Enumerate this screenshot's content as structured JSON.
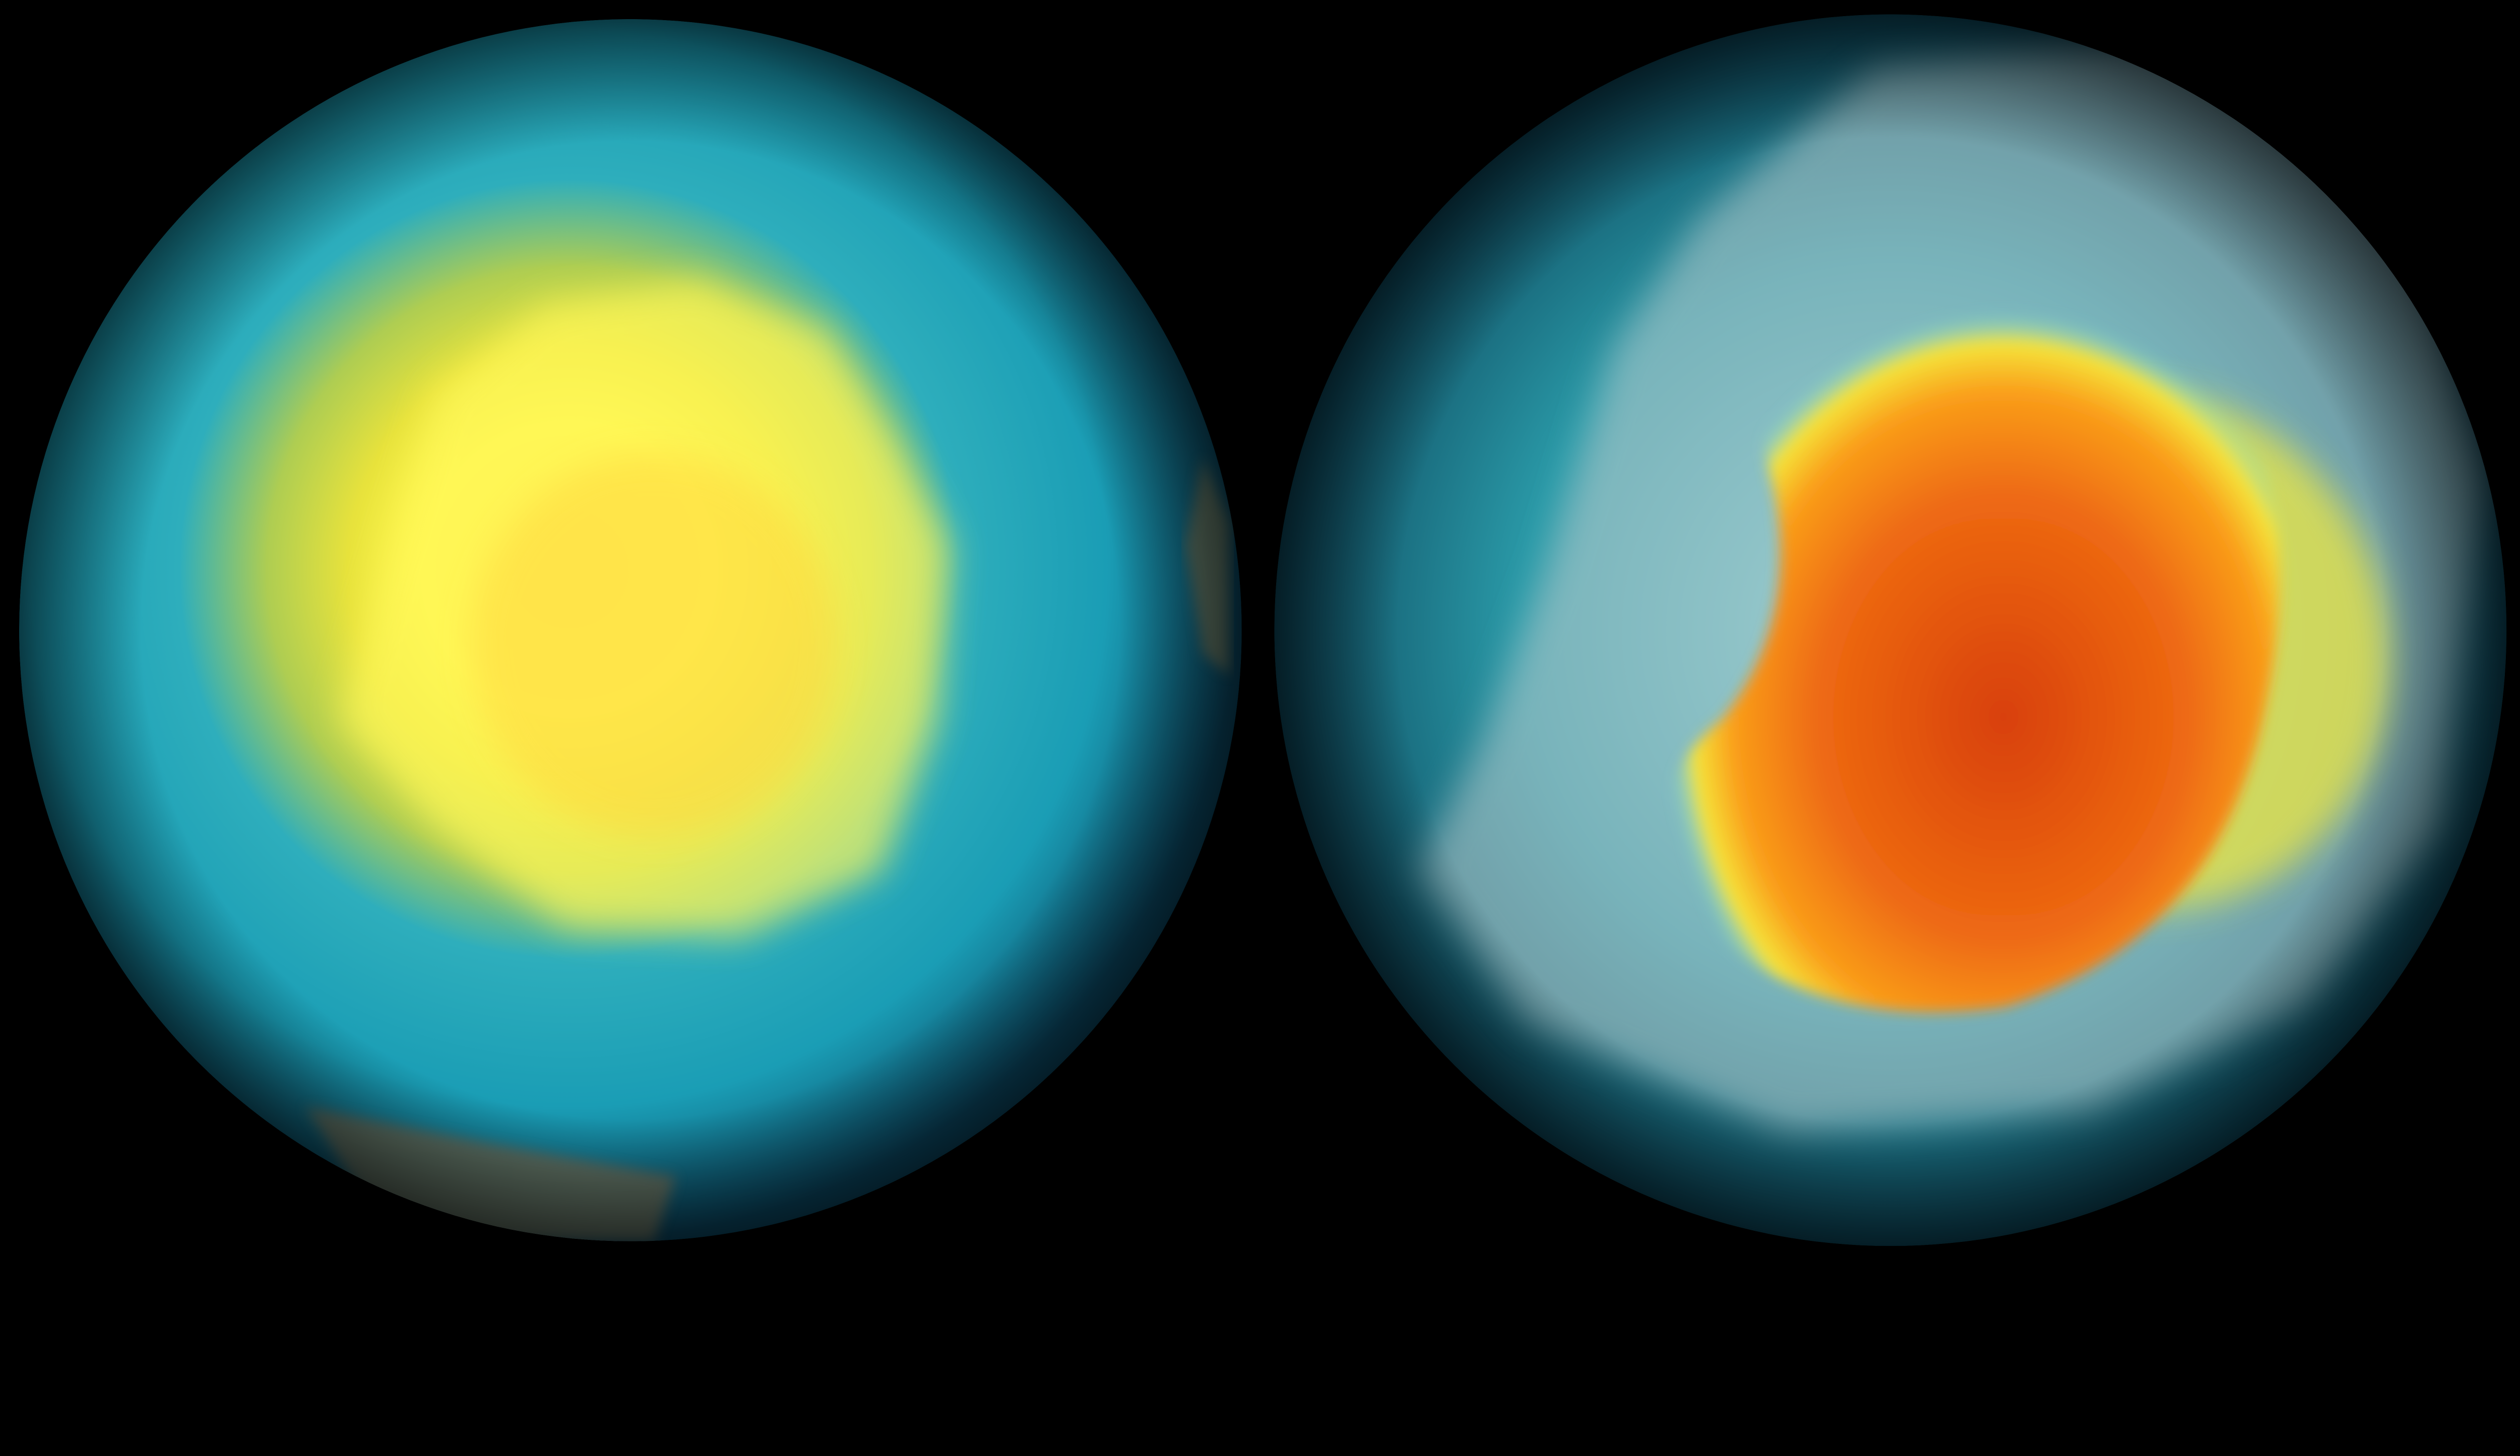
{
  "scene": {
    "background_color": "#000000",
    "globes": [
      {
        "id": "left-globe",
        "view": "south-polar",
        "colors": {
          "core": "#fff23a",
          "mid": "#d9d23a",
          "ocean": "#1aa3b8",
          "edge": "#0b3a55",
          "land": "#6e7a62"
        }
      },
      {
        "id": "right-globe",
        "view": "oblique",
        "colors": {
          "hot": "#d43a0a",
          "warm": "#f58a12",
          "ring": "#f2e23a",
          "ocean": "#1c8c9c",
          "edge": "#0a2f45",
          "land": "#b9c6c8"
        }
      }
    ]
  }
}
